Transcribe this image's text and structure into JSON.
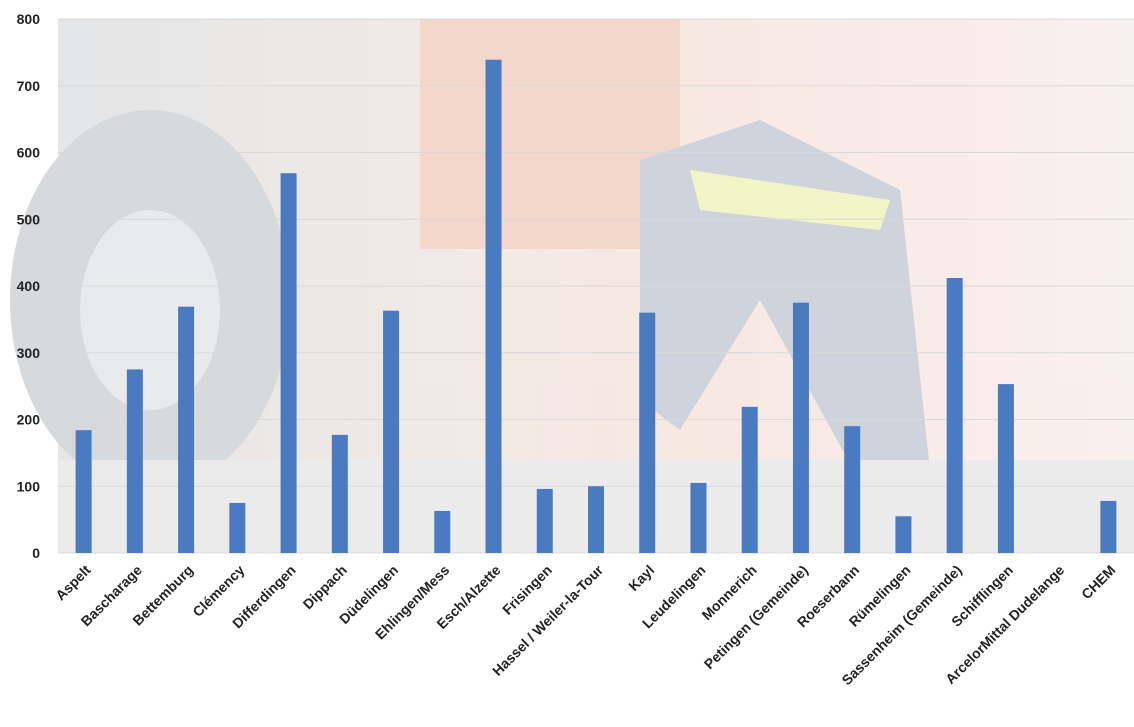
{
  "chart_data": {
    "type": "bar",
    "categories": [
      "Aspelt",
      "Bascharage",
      "Bettemburg",
      "Clémency",
      "Differdingen",
      "Dippach",
      "Düdelingen",
      "Ehlingen/Mess",
      "Esch/Alzette",
      "Frisingen",
      "Hassel / Weiler-la-Tour",
      "Kayl",
      "Leudelingen",
      "Monnerich",
      "Petingen (Gemeinde)",
      "Roeserbann",
      "Rümelingen",
      "Sassenheim (Gemeinde)",
      "Schifflingen",
      "ArcelorMittal Dudelange",
      "CHEM"
    ],
    "values": [
      184,
      275,
      369,
      75,
      569,
      177,
      363,
      63,
      739,
      96,
      100,
      360,
      105,
      219,
      375,
      190,
      55,
      412,
      253,
      null,
      78
    ],
    "color": "#4a7bc0",
    "ylim": [
      0,
      800
    ],
    "yticks": [
      0,
      100,
      200,
      300,
      400,
      500,
      600,
      700,
      800
    ],
    "grid": true
  }
}
